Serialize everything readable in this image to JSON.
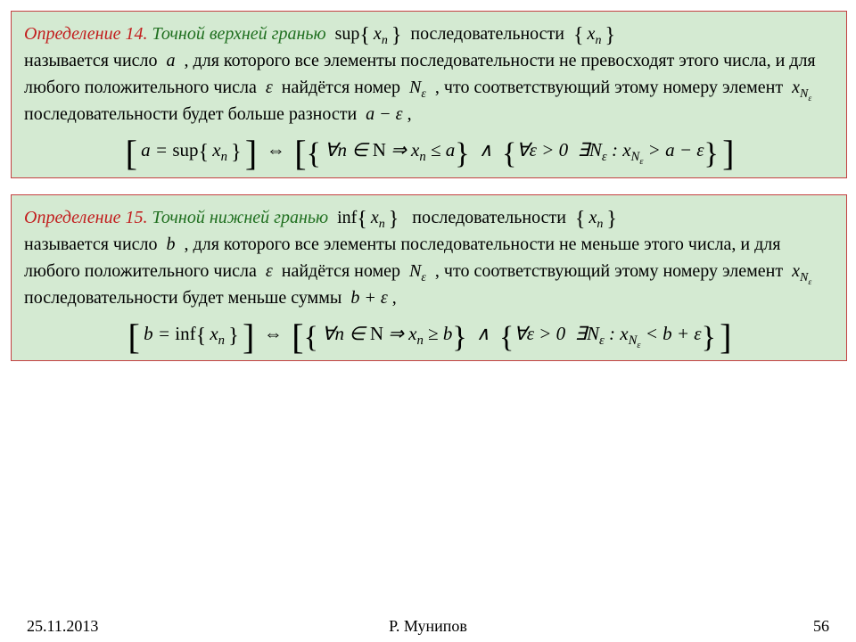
{
  "colors": {
    "box_bg": "#d4ead2",
    "box_border": "#c44141",
    "defnum_color": "#c21d1d",
    "defterm_color": "#1f6f1f",
    "text_color": "#000000",
    "page_bg": "#ffffff"
  },
  "typography": {
    "body_font": "Times New Roman",
    "body_size_pt": 15,
    "formula_size_pt": 16
  },
  "def14": {
    "num": "Определение 14",
    "term": "Точной верхней гранью",
    "sup_label": "sup",
    "seq": "xₙ",
    "t1": "последовательности",
    "t2": "называется число",
    "var": "a",
    "t3": ", для которого все элементы последовательности не превосходят этого числа, и для любого положительного числа",
    "eps": "ε",
    "t4": "найдётся номер",
    "Neps": "Nₑ",
    "t5": ", что соответствующий этому номеру элемент",
    "xNe": "x_{Nₑ}",
    "t6": "последовательности будет больше разности",
    "diff": "a − ε",
    "comma": ",",
    "formula_a": "a = sup{ xₙ }",
    "iff": "⇔",
    "formula_b1": "∀n ∈ N ⇒ xₙ ≤ a",
    "and": "∧",
    "formula_b2": "∀ε > 0  ∃Nₑ : x_{Nₑ} > a − ε"
  },
  "def15": {
    "num": "Определение 15",
    "term": "Точной нижней гранью",
    "inf_label": "inf",
    "seq": "xₙ",
    "t1": "последовательности",
    "t2": "называется число",
    "var": "b",
    "t3": ", для которого все элементы последовательности не меньше этого числа, и для любого положительного числа",
    "eps": "ε",
    "t4": "найдётся номер",
    "Neps": "Nₑ",
    "t5": ", что соответствующий этому номеру элемент",
    "xNe": "x_{Nₑ}",
    "t6": "последовательности будет меньше суммы",
    "sum": "b + ε",
    "comma": ",",
    "formula_a": "b = inf{ xₙ }",
    "iff": "⇔",
    "formula_b1": "∀n ∈ N ⇒ xₙ ≥ b",
    "and": "∧",
    "formula_b2": "∀ε > 0  ∃Nₑ : x_{Nₑ} < b + ε"
  },
  "footer": {
    "date": "25.11.2013",
    "author": "Р. Мунипов",
    "page": "56"
  }
}
